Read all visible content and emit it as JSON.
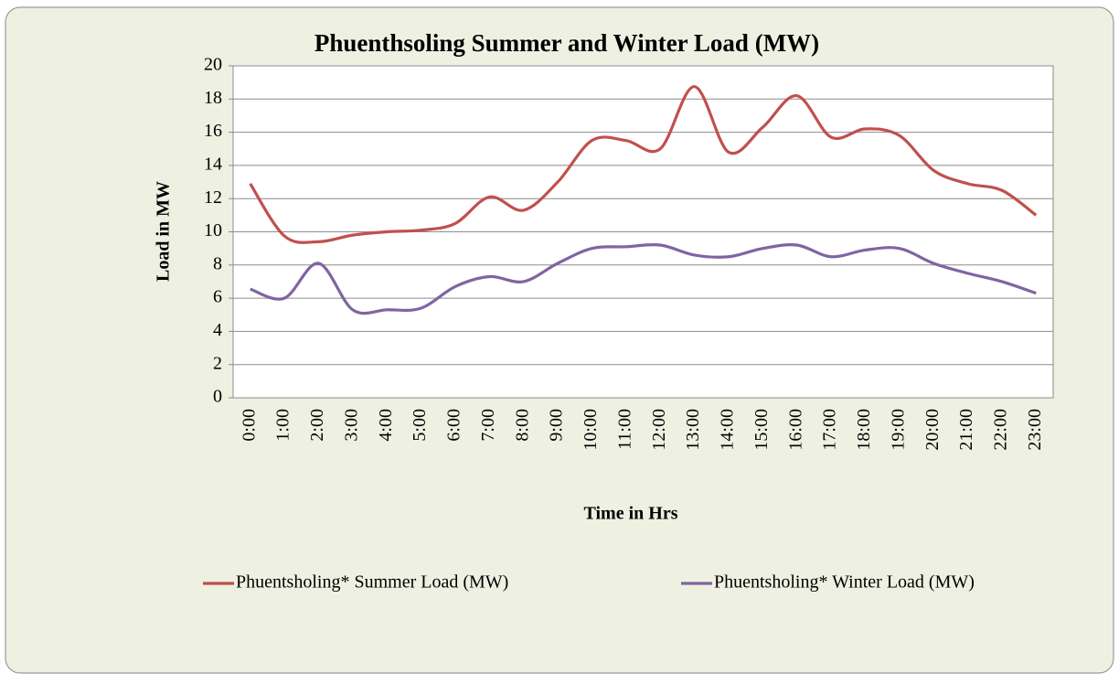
{
  "chart_data": {
    "type": "line",
    "title": "Phuenthsoling Summer and Winter Load (MW)",
    "x_label": "Time in Hrs",
    "y_label": "Load in MW",
    "categories": [
      "0:00",
      "1:00",
      "2:00",
      "3:00",
      "4:00",
      "5:00",
      "6:00",
      "7:00",
      "8:00",
      "9:00",
      "10:00",
      "11:00",
      "12:00",
      "13:00",
      "14:00",
      "15:00",
      "16:00",
      "17:00",
      "18:00",
      "19:00",
      "20:00",
      "21:00",
      "22:00",
      "23:00"
    ],
    "series": [
      {
        "name": "Phuentsholing* Summer Load (MW)",
        "color": "#c0504d",
        "values": [
          12.9,
          9.75,
          9.4,
          9.8,
          10.0,
          10.1,
          10.5,
          12.1,
          11.3,
          13.0,
          15.5,
          15.5,
          15.0,
          18.75,
          14.8,
          16.3,
          18.2,
          15.7,
          16.2,
          15.8,
          13.7,
          12.9,
          12.5,
          11.0
        ]
      },
      {
        "name": "Phuentsholing* Winter Load (MW)",
        "color": "#8064a2",
        "values": [
          6.55,
          6.0,
          8.1,
          5.3,
          5.3,
          5.4,
          6.7,
          7.3,
          7.0,
          8.1,
          9.0,
          9.1,
          9.2,
          8.6,
          8.5,
          9.0,
          9.2,
          8.5,
          8.9,
          9.0,
          8.1,
          7.5,
          7.0,
          6.3
        ]
      }
    ],
    "ylim": [
      0,
      20
    ],
    "yticks": [
      0,
      2,
      4,
      6,
      8,
      10,
      12,
      14,
      16,
      18,
      20
    ],
    "grid": true,
    "smooth": true,
    "legend": "bottom"
  }
}
